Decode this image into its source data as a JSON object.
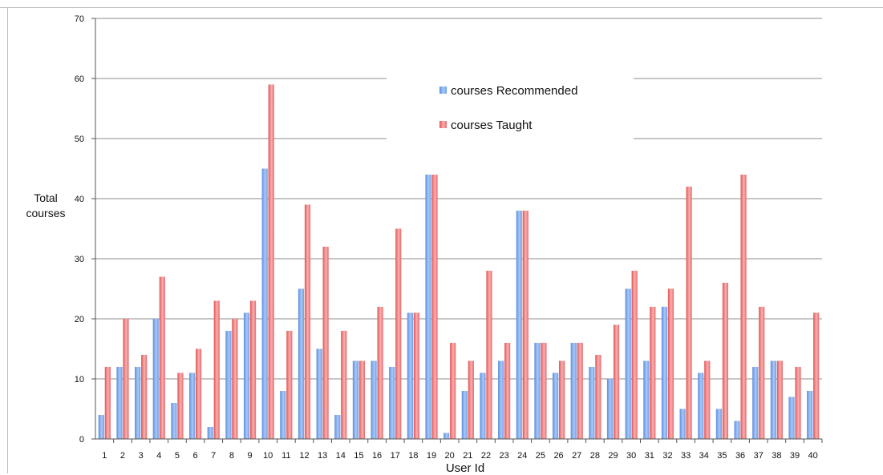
{
  "chart_data": {
    "type": "bar",
    "title": "",
    "xlabel": "User Id",
    "ylabel": "Total courses",
    "ylim": [
      0,
      70
    ],
    "yticks": [
      0,
      10,
      20,
      30,
      40,
      50,
      60,
      70
    ],
    "grid": true,
    "legend_position": "top-center",
    "categories": [
      "1",
      "2",
      "3",
      "4",
      "5",
      "6",
      "7",
      "8",
      "9",
      "10",
      "11",
      "12",
      "13",
      "14",
      "15",
      "16",
      "17",
      "18",
      "19",
      "20",
      "21",
      "22",
      "23",
      "24",
      "25",
      "26",
      "27",
      "28",
      "29",
      "30",
      "31",
      "32",
      "33",
      "34",
      "35",
      "36",
      "37",
      "38",
      "39",
      "40"
    ],
    "series": [
      {
        "name": "courses Recommended",
        "color": "#6a9ee8",
        "values": [
          4,
          12,
          12,
          20,
          6,
          11,
          2,
          18,
          21,
          45,
          8,
          25,
          15,
          4,
          13,
          13,
          12,
          21,
          44,
          1,
          8,
          11,
          13,
          38,
          16,
          11,
          16,
          12,
          10,
          25,
          13,
          22,
          5,
          11,
          5,
          3,
          12,
          13,
          7,
          8
        ]
      },
      {
        "name": "courses Taught",
        "color": "#e8585a",
        "values": [
          12,
          20,
          14,
          27,
          11,
          15,
          23,
          20,
          23,
          59,
          18,
          39,
          32,
          18,
          13,
          22,
          35,
          21,
          44,
          16,
          13,
          28,
          16,
          38,
          16,
          13,
          16,
          14,
          19,
          28,
          22,
          25,
          42,
          13,
          26,
          44,
          22,
          13,
          12,
          21
        ]
      }
    ]
  }
}
